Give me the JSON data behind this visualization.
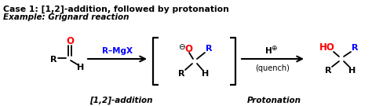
{
  "title_line1": "Case 1: [1,2]-addition, followed by protonation",
  "title_line2": "Example: Grignard reaction",
  "bg_color": "#ffffff",
  "label_12addition": "[1,2]-addition",
  "label_protonation": "Protonation",
  "figsize": [
    4.74,
    1.35
  ],
  "dpi": 100
}
